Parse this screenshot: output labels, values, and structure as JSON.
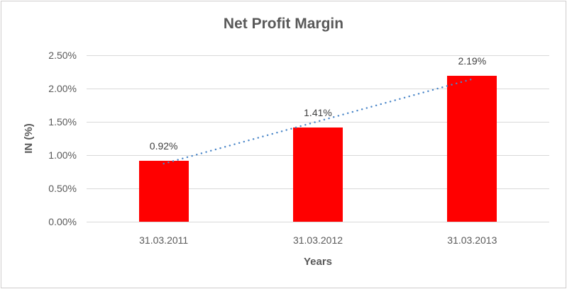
{
  "chart_data": {
    "type": "bar",
    "title": "Net Profit Margin",
    "categories": [
      "31.03.2011",
      "31.03.2012",
      "31.03.2013"
    ],
    "values": [
      0.92,
      1.41,
      2.19
    ],
    "value_labels": [
      "0.92%",
      "1.41%",
      "2.19%"
    ],
    "xlabel": "Years",
    "ylabel": "IN (%)",
    "ylim": [
      0,
      2.5
    ],
    "ytick_step": 0.5,
    "ytick_labels": [
      "0.00%",
      "0.50%",
      "1.00%",
      "1.50%",
      "2.00%",
      "2.50%"
    ],
    "grid": true,
    "legend": "none",
    "trendline": {
      "type": "linear",
      "style": "round-dot",
      "color": "#4A86C8"
    },
    "colors": {
      "bar": "#FF0000",
      "trendline": "#4A86C8",
      "gridline": "#D9D9D9",
      "axis_text": "#595959",
      "data_label_text": "#404040",
      "title_text": "#595959",
      "frame_border": "#D0CECE",
      "background": "#FFFFFF"
    }
  }
}
